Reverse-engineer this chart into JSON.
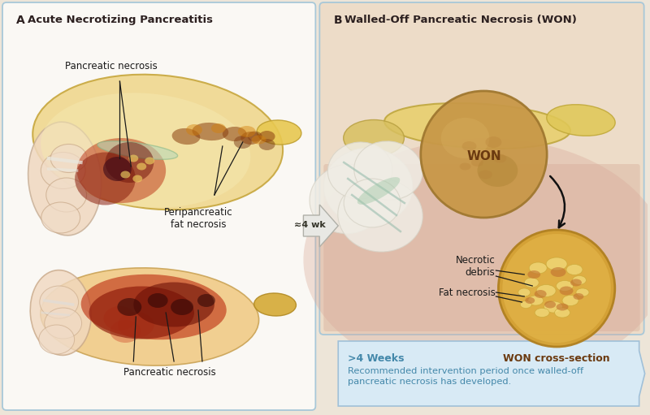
{
  "bg_color": "#ede5d8",
  "panel_a_bg": "#faf8f4",
  "panel_b_bg": "#f0e8d8",
  "border_color_a": "#a8c8d8",
  "border_color_b": "#a8c8d8",
  "panel_a_label": "A",
  "panel_a_title": "Acute Necrotizing Pancreatitis",
  "panel_b_label": "B",
  "panel_b_title": "Walled-Off Pancreatic Necrosis (WON)",
  "label1_top": "Pancreatic necrosis",
  "label2_top": "Peripancreatic\nfat necrosis",
  "label_bottom": "Pancreatic necrosis",
  "arrow_label": "≈4 wk",
  "won_label": "WON",
  "necrotic_label": "Necrotic\ndebris",
  "fat_label": "Fat necrosis",
  "won_cross_label": "WON cross-section",
  "weeks_bold": ">4 Weeks",
  "weeks_text": "Recommended intervention period once walled-off\npancreatic necrosis has developed.",
  "title_color": "#2c2020",
  "label_color": "#1a1a1a",
  "weeks_color": "#4488aa",
  "won_label_color": "#6b3a10",
  "won_cross_label_color": "#6b3a10"
}
